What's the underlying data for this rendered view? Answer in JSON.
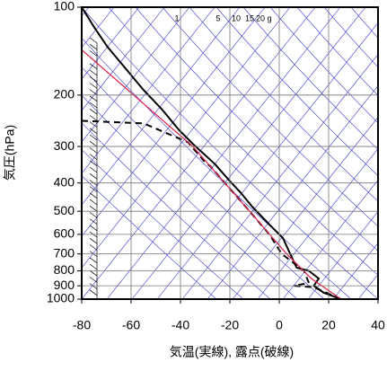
{
  "chart_data": {
    "type": "line",
    "xlabel": "気温(実線), 露点(破線)",
    "ylabel": "気圧(hPa)",
    "xlim": [
      -80,
      40
    ],
    "xticks": [
      -80,
      -60,
      -40,
      -20,
      0,
      20,
      40
    ],
    "ylim": [
      1000,
      100
    ],
    "yticks": [
      100,
      200,
      300,
      400,
      500,
      600,
      700,
      800,
      900,
      1000
    ],
    "ylog": true,
    "grid": true,
    "annotations": [
      "1",
      "5",
      "10",
      "15",
      "20",
      "g"
    ],
    "series": [
      {
        "color": "#000000",
        "dash": false,
        "pressure": [
          100,
          117,
          137,
          163,
          192,
          224,
          264,
          294,
          345,
          390,
          433,
          482,
          555,
          618,
          687,
          780,
          800,
          850,
          900,
          950,
          1000
        ],
        "values": [
          -80,
          -75,
          -69.5,
          -62,
          -55,
          -47.5,
          -40.5,
          -35,
          -26,
          -20.5,
          -15.5,
          -11,
          -4,
          1.5,
          4,
          7,
          12,
          16,
          14,
          18,
          25
        ]
      },
      {
        "color": "#000000",
        "dash": true,
        "pressure": [
          245,
          250,
          290,
          340,
          350,
          400,
          500,
          600,
          700,
          800,
          880,
          900,
          910,
          1000
        ],
        "values": [
          -80,
          -55,
          -37,
          -30,
          -28,
          -22,
          -12,
          -4,
          1,
          10,
          12,
          6,
          14,
          25
        ]
      },
      {
        "color": "#e0204a",
        "dash": false,
        "pressure": [
          140,
          300,
          500,
          700,
          850,
          1000
        ],
        "values": [
          -80,
          -35,
          -12,
          3,
          13,
          25
        ]
      }
    ]
  }
}
